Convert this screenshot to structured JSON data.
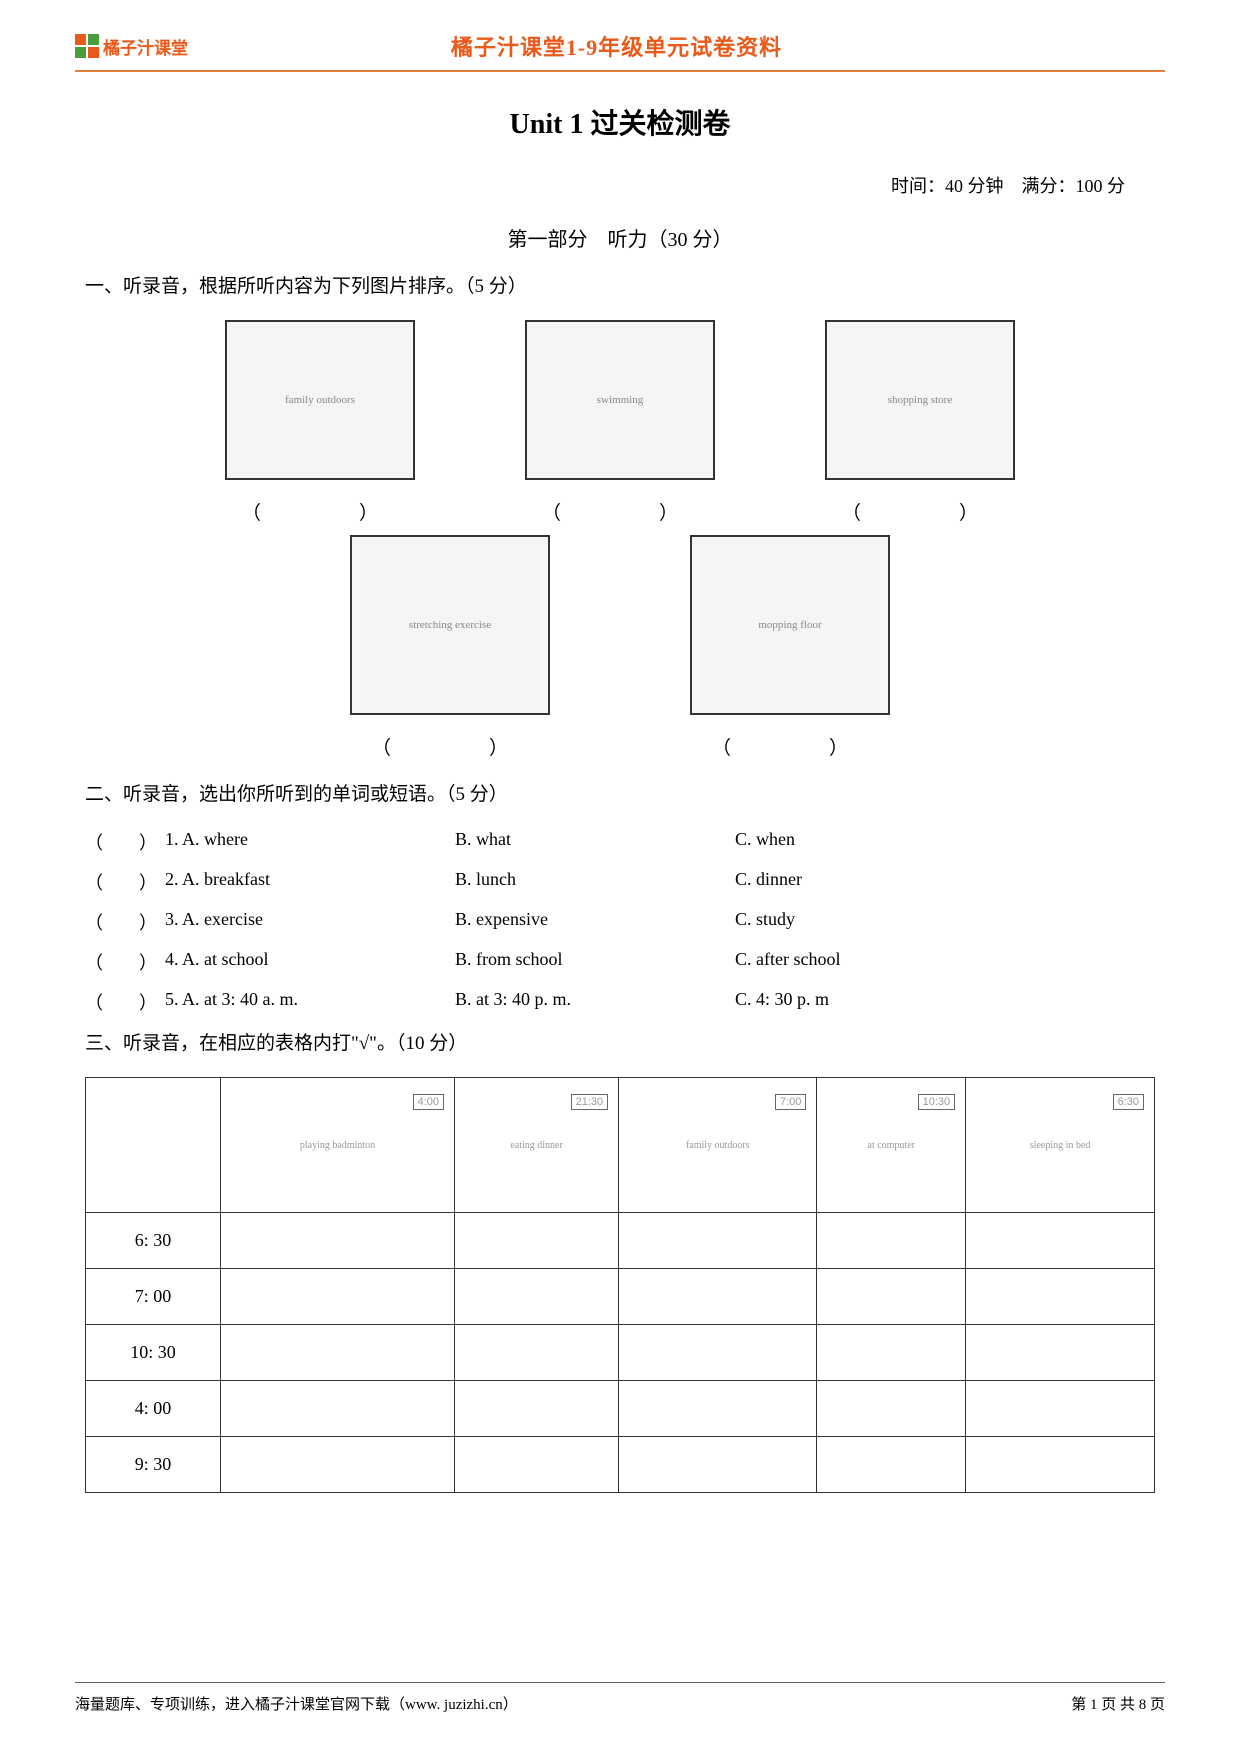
{
  "header": {
    "logo_text": "橘子汁课堂",
    "title": "橘子汁课堂1-9年级单元试卷资料"
  },
  "main_title": "Unit 1 过关检测卷",
  "info": "时间：40 分钟　满分：100 分",
  "part1_title": "第一部分　听力（30 分）",
  "section1": {
    "title": "一、听录音，根据所听内容为下列图片排序。（5 分）",
    "blank": "（　　）",
    "img_descriptions": {
      "img1": "family outdoors",
      "img2": "swimming",
      "img3": "shopping store",
      "img4": "stretching exercise",
      "img5": "mopping floor"
    }
  },
  "section2": {
    "title": "二、听录音，选出你所听到的单词或短语。（5 分）",
    "questions": [
      {
        "num": "1",
        "a": "A. where",
        "b": "B. what",
        "c": "C. when"
      },
      {
        "num": "2",
        "a": "A. breakfast",
        "b": "B. lunch",
        "c": "C. dinner"
      },
      {
        "num": "3",
        "a": "A. exercise",
        "b": "B. expensive",
        "c": "C. study"
      },
      {
        "num": "4",
        "a": "A. at school",
        "b": "B. from school",
        "c": "C. after school"
      },
      {
        "num": "5",
        "a": "A. at 3: 40 a. m.",
        "b": "B. at 3: 40 p. m.",
        "c": "C. 4: 30 p. m"
      }
    ],
    "paren": "（　　）"
  },
  "section3": {
    "title": "三、听录音，在相应的表格内打\"√\"。（10 分）",
    "header_clocks": [
      "4:00",
      "21:30",
      "7:00",
      "10:30",
      "6:30"
    ],
    "header_imgs": [
      "playing badminton",
      "eating dinner",
      "family outdoors",
      "at computer",
      "sleeping in bed"
    ],
    "times": [
      "6: 30",
      "7: 00",
      "10: 30",
      "4: 00",
      "9: 30"
    ]
  },
  "footer": {
    "left": "海量题库、专项训练，进入橘子汁课堂官网下载（www. juzizhi.cn）",
    "right": "第 1 页 共 8 页"
  }
}
